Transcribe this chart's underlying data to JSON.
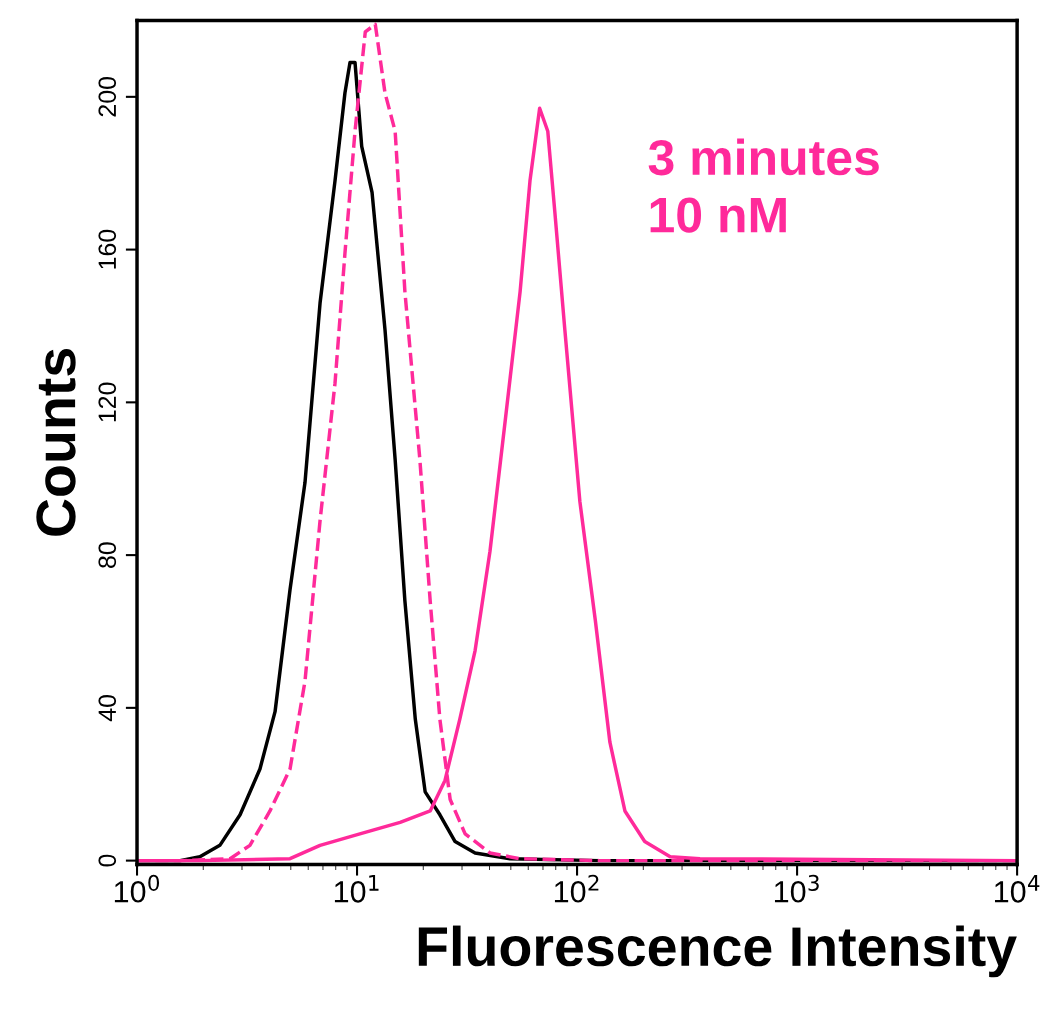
{
  "chart_data": {
    "type": "line",
    "xlabel": "Fluorescence Intensity",
    "ylabel": "Counts",
    "log": "x",
    "grid": false,
    "marker": "none",
    "xlim": [
      1,
      10000
    ],
    "xticks": [
      {
        "value": 1,
        "label": "10$^{0}$"
      },
      {
        "value": 10,
        "label": "10$^{1}$"
      },
      {
        "value": 100,
        "label": "10$^{2}$"
      },
      {
        "value": 1000,
        "label": "10$^{3}$"
      },
      {
        "value": 10000,
        "label": "10$^{4}$"
      }
    ],
    "ylim": [
      -1,
      220
    ],
    "yticks": [
      0,
      40,
      80,
      120,
      160,
      200
    ],
    "annotations": [
      "3 minutes\n10 nM"
    ],
    "series": [
      {
        "color": "#000000",
        "line_style": "solid",
        "x": [
          1,
          1.57,
          1.93,
          2.38,
          2.94,
          3.62,
          4.24,
          4.96,
          5.8,
          6.79,
          7.94,
          8.81,
          9.29,
          9.79,
          10.5,
          11.7,
          13.4,
          14.9,
          16.5,
          18.4,
          20.4,
          23.8,
          27.9,
          34.4,
          49.6,
          126,
          10000
        ],
        "values": [
          0,
          0,
          1,
          4,
          12,
          24,
          39,
          71,
          99,
          146,
          178,
          201,
          209,
          209,
          187,
          175,
          139,
          105,
          68,
          37,
          18,
          12,
          5,
          2,
          0.5,
          0,
          0
        ]
      },
      {
        "color": "#ff2a9a",
        "line_style": "dashed",
        "x": [
          1,
          1.57,
          2.65,
          3.26,
          4.02,
          4.96,
          5.8,
          6.79,
          7.94,
          8.81,
          9.79,
          10.9,
          12.1,
          13.4,
          14.9,
          16.5,
          19.3,
          21.5,
          23.8,
          26.5,
          31,
          40.2,
          55.1,
          126,
          10000
        ],
        "values": [
          0,
          0,
          0.5,
          4,
          13,
          24,
          47,
          89,
          125,
          159,
          191,
          217,
          219,
          201,
          191,
          149,
          105,
          68,
          37,
          16,
          7,
          2,
          0.5,
          0,
          0
        ]
      },
      {
        "color": "#ff2a9a",
        "line_style": "solid",
        "x": [
          1,
          1.93,
          4.96,
          6.79,
          10.3,
          15.7,
          21.5,
          25.1,
          29.3,
          34.4,
          40.2,
          47.1,
          55.1,
          61.1,
          67.6,
          73.6,
          79.2,
          88,
          103,
          121,
          141,
          165,
          203,
          265,
          362,
          10000
        ],
        "values": [
          0,
          0,
          0.5,
          4,
          7,
          10,
          13,
          21,
          37,
          55,
          81,
          115,
          149,
          178,
          197,
          191,
          170,
          139,
          94,
          63,
          31,
          13,
          5,
          1,
          0.5,
          0
        ]
      }
    ]
  }
}
